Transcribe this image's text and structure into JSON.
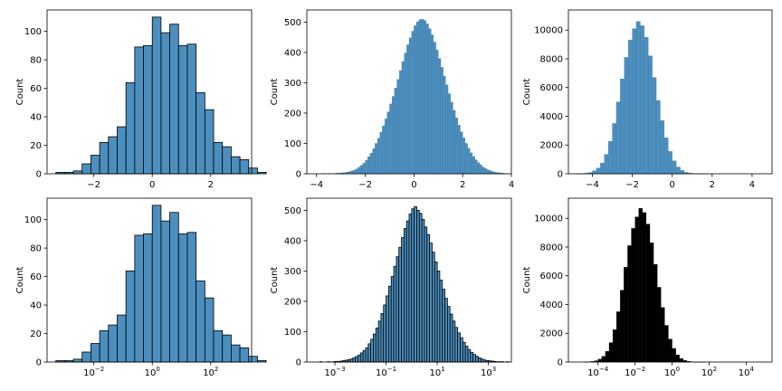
{
  "colors": {
    "bar_fill": "#4c8fbf",
    "bar_edge_dark": "#000000",
    "bar_edge_light": "#3a6f95",
    "black_fill": "#000000",
    "axes": "#000000"
  },
  "chart_data": [
    {
      "type": "bar",
      "subtype": "histogram",
      "scale": "linear",
      "edge": "black",
      "ylabel": "Count",
      "xlim": [
        -3.6,
        3.4
      ],
      "ylim": [
        0,
        115
      ],
      "xticks": [
        -2,
        0,
        2
      ],
      "xtick_labels": [
        "−2",
        "0",
        "2"
      ],
      "yticks": [
        0,
        20,
        40,
        60,
        80,
        100
      ],
      "ytick_labels": [
        "0",
        "20",
        "40",
        "60",
        "80",
        "100"
      ],
      "bin_start": -3.3,
      "bin_width": 0.3,
      "values": [
        1,
        1,
        2,
        7,
        13,
        22,
        26,
        33,
        64,
        89,
        90,
        110,
        99,
        105,
        90,
        91,
        57,
        45,
        22,
        19,
        12,
        10,
        4,
        1
      ]
    },
    {
      "type": "bar",
      "subtype": "histogram",
      "scale": "linear",
      "edge": "light",
      "ylabel": "Count",
      "xlim": [
        -4.4,
        4.0
      ],
      "ylim": [
        0,
        540
      ],
      "xticks": [
        -4,
        -2,
        0,
        2,
        4
      ],
      "xtick_labels": [
        "−4",
        "−2",
        "0",
        "2",
        "4"
      ],
      "yticks": [
        0,
        100,
        200,
        300,
        400,
        500
      ],
      "ytick_labels": [
        "0",
        "100",
        "200",
        "300",
        "400",
        "500"
      ],
      "bin_start": -4.0,
      "bin_width": 0.1,
      "values": [
        0,
        0,
        0,
        1,
        0,
        1,
        0,
        1,
        2,
        2,
        3,
        4,
        5,
        7,
        9,
        12,
        16,
        22,
        28,
        35,
        44,
        56,
        68,
        83,
        100,
        117,
        137,
        158,
        181,
        204,
        230,
        255,
        283,
        311,
        340,
        370,
        398,
        425,
        448,
        470,
        488,
        501,
        508,
        509,
        505,
        494,
        478,
        458,
        434,
        408,
        380,
        351,
        322,
        293,
        264,
        236,
        209,
        184,
        160,
        138,
        118,
        100,
        84,
        69,
        57,
        46,
        37,
        29,
        22,
        17,
        13,
        10,
        7,
        5,
        4,
        3,
        2,
        1,
        1,
        0
      ]
    },
    {
      "type": "bar",
      "subtype": "histogram",
      "scale": "linear",
      "edge": "light",
      "ylabel": "Count",
      "xlim": [
        -5.2,
        5.0
      ],
      "ylim": [
        0,
        11400
      ],
      "xticks": [
        -4,
        -2,
        0,
        2,
        4
      ],
      "xtick_labels": [
        "−4",
        "−2",
        "0",
        "2",
        "4"
      ],
      "yticks": [
        0,
        2000,
        4000,
        6000,
        8000,
        10000
      ],
      "ytick_labels": [
        "0",
        "2000",
        "4000",
        "6000",
        "8000",
        "10000"
      ],
      "bin_start": -4.8,
      "bin_width": 0.2,
      "values": [
        5,
        15,
        40,
        90,
        200,
        400,
        750,
        1350,
        2250,
        3500,
        5000,
        6600,
        8100,
        9300,
        10100,
        10600,
        10300,
        9500,
        8200,
        6700,
        5100,
        3700,
        2500,
        1550,
        900,
        470,
        230,
        100,
        45,
        15,
        5,
        2,
        1,
        0,
        0,
        0,
        0,
        0,
        0,
        0,
        0,
        0,
        0,
        0,
        0,
        0,
        0,
        0
      ]
    },
    {
      "type": "bar",
      "subtype": "histogram",
      "scale": "log",
      "edge": "black",
      "ylabel": "Count",
      "xlim": [
        -3.6,
        3.4
      ],
      "ylim": [
        0,
        115
      ],
      "xticks": [
        -2,
        0,
        2
      ],
      "xtick_base": "10",
      "xtick_exponents": [
        "−2",
        "0",
        "2"
      ],
      "yticks": [
        0,
        20,
        40,
        60,
        80,
        100
      ],
      "ytick_labels": [
        "0",
        "20",
        "40",
        "60",
        "80",
        "100"
      ],
      "bin_start": -3.3,
      "bin_width": 0.3,
      "values": [
        1,
        1,
        2,
        7,
        13,
        22,
        26,
        33,
        64,
        89,
        90,
        110,
        99,
        105,
        90,
        91,
        57,
        45,
        22,
        19,
        12,
        10,
        4,
        1
      ]
    },
    {
      "type": "bar",
      "subtype": "histogram",
      "scale": "log",
      "edge": "black",
      "ylabel": "Count",
      "xlim": [
        -4.1,
        3.9
      ],
      "ylim": [
        0,
        540
      ],
      "xticks": [
        -3,
        -1,
        1,
        3
      ],
      "xtick_base": "10",
      "xtick_exponents": [
        "−3",
        "−1",
        "1",
        "3"
      ],
      "yticks": [
        0,
        100,
        200,
        300,
        400,
        500
      ],
      "ytick_labels": [
        "0",
        "100",
        "200",
        "300",
        "400",
        "500"
      ],
      "bin_start": -3.6,
      "bin_width": 0.1,
      "values": [
        1,
        0,
        0,
        1,
        0,
        1,
        2,
        2,
        3,
        5,
        6,
        8,
        10,
        14,
        18,
        23,
        30,
        38,
        47,
        60,
        75,
        92,
        112,
        135,
        160,
        188,
        218,
        250,
        282,
        315,
        347,
        378,
        410,
        440,
        465,
        488,
        505,
        512,
        500,
        490,
        470,
        445,
        420,
        392,
        362,
        330,
        300,
        270,
        240,
        210,
        183,
        158,
        135,
        114,
        96,
        80,
        65,
        52,
        41,
        32,
        25,
        19,
        14,
        10,
        7,
        5,
        4,
        3,
        2,
        1,
        1,
        1,
        0,
        1
      ]
    },
    {
      "type": "bar",
      "subtype": "histogram",
      "scale": "log",
      "edge": "black",
      "fill": "black",
      "ylabel": "Count",
      "xlim": [
        -5.6,
        5.4
      ],
      "ylim": [
        0,
        11400
      ],
      "xticks": [
        -4,
        -2,
        0,
        2,
        4
      ],
      "xtick_base": "10",
      "xtick_exponents": [
        "−4",
        "−2",
        "0",
        "2",
        "4"
      ],
      "yticks": [
        0,
        2000,
        4000,
        6000,
        8000,
        10000
      ],
      "ytick_labels": [
        "0",
        "2000",
        "4000",
        "6000",
        "8000",
        "10000"
      ],
      "bin_start": -4.8,
      "bin_width": 0.2,
      "values": [
        5,
        15,
        40,
        90,
        200,
        400,
        750,
        1350,
        2250,
        3500,
        5000,
        6600,
        8100,
        9300,
        10100,
        10700,
        10400,
        9600,
        8300,
        6800,
        5200,
        3800,
        2550,
        1600,
        950,
        500,
        250,
        110,
        50,
        20,
        8,
        3,
        1,
        0,
        0,
        0,
        0,
        0,
        0,
        0,
        0,
        0,
        0,
        0,
        0,
        0,
        0,
        0
      ]
    }
  ]
}
